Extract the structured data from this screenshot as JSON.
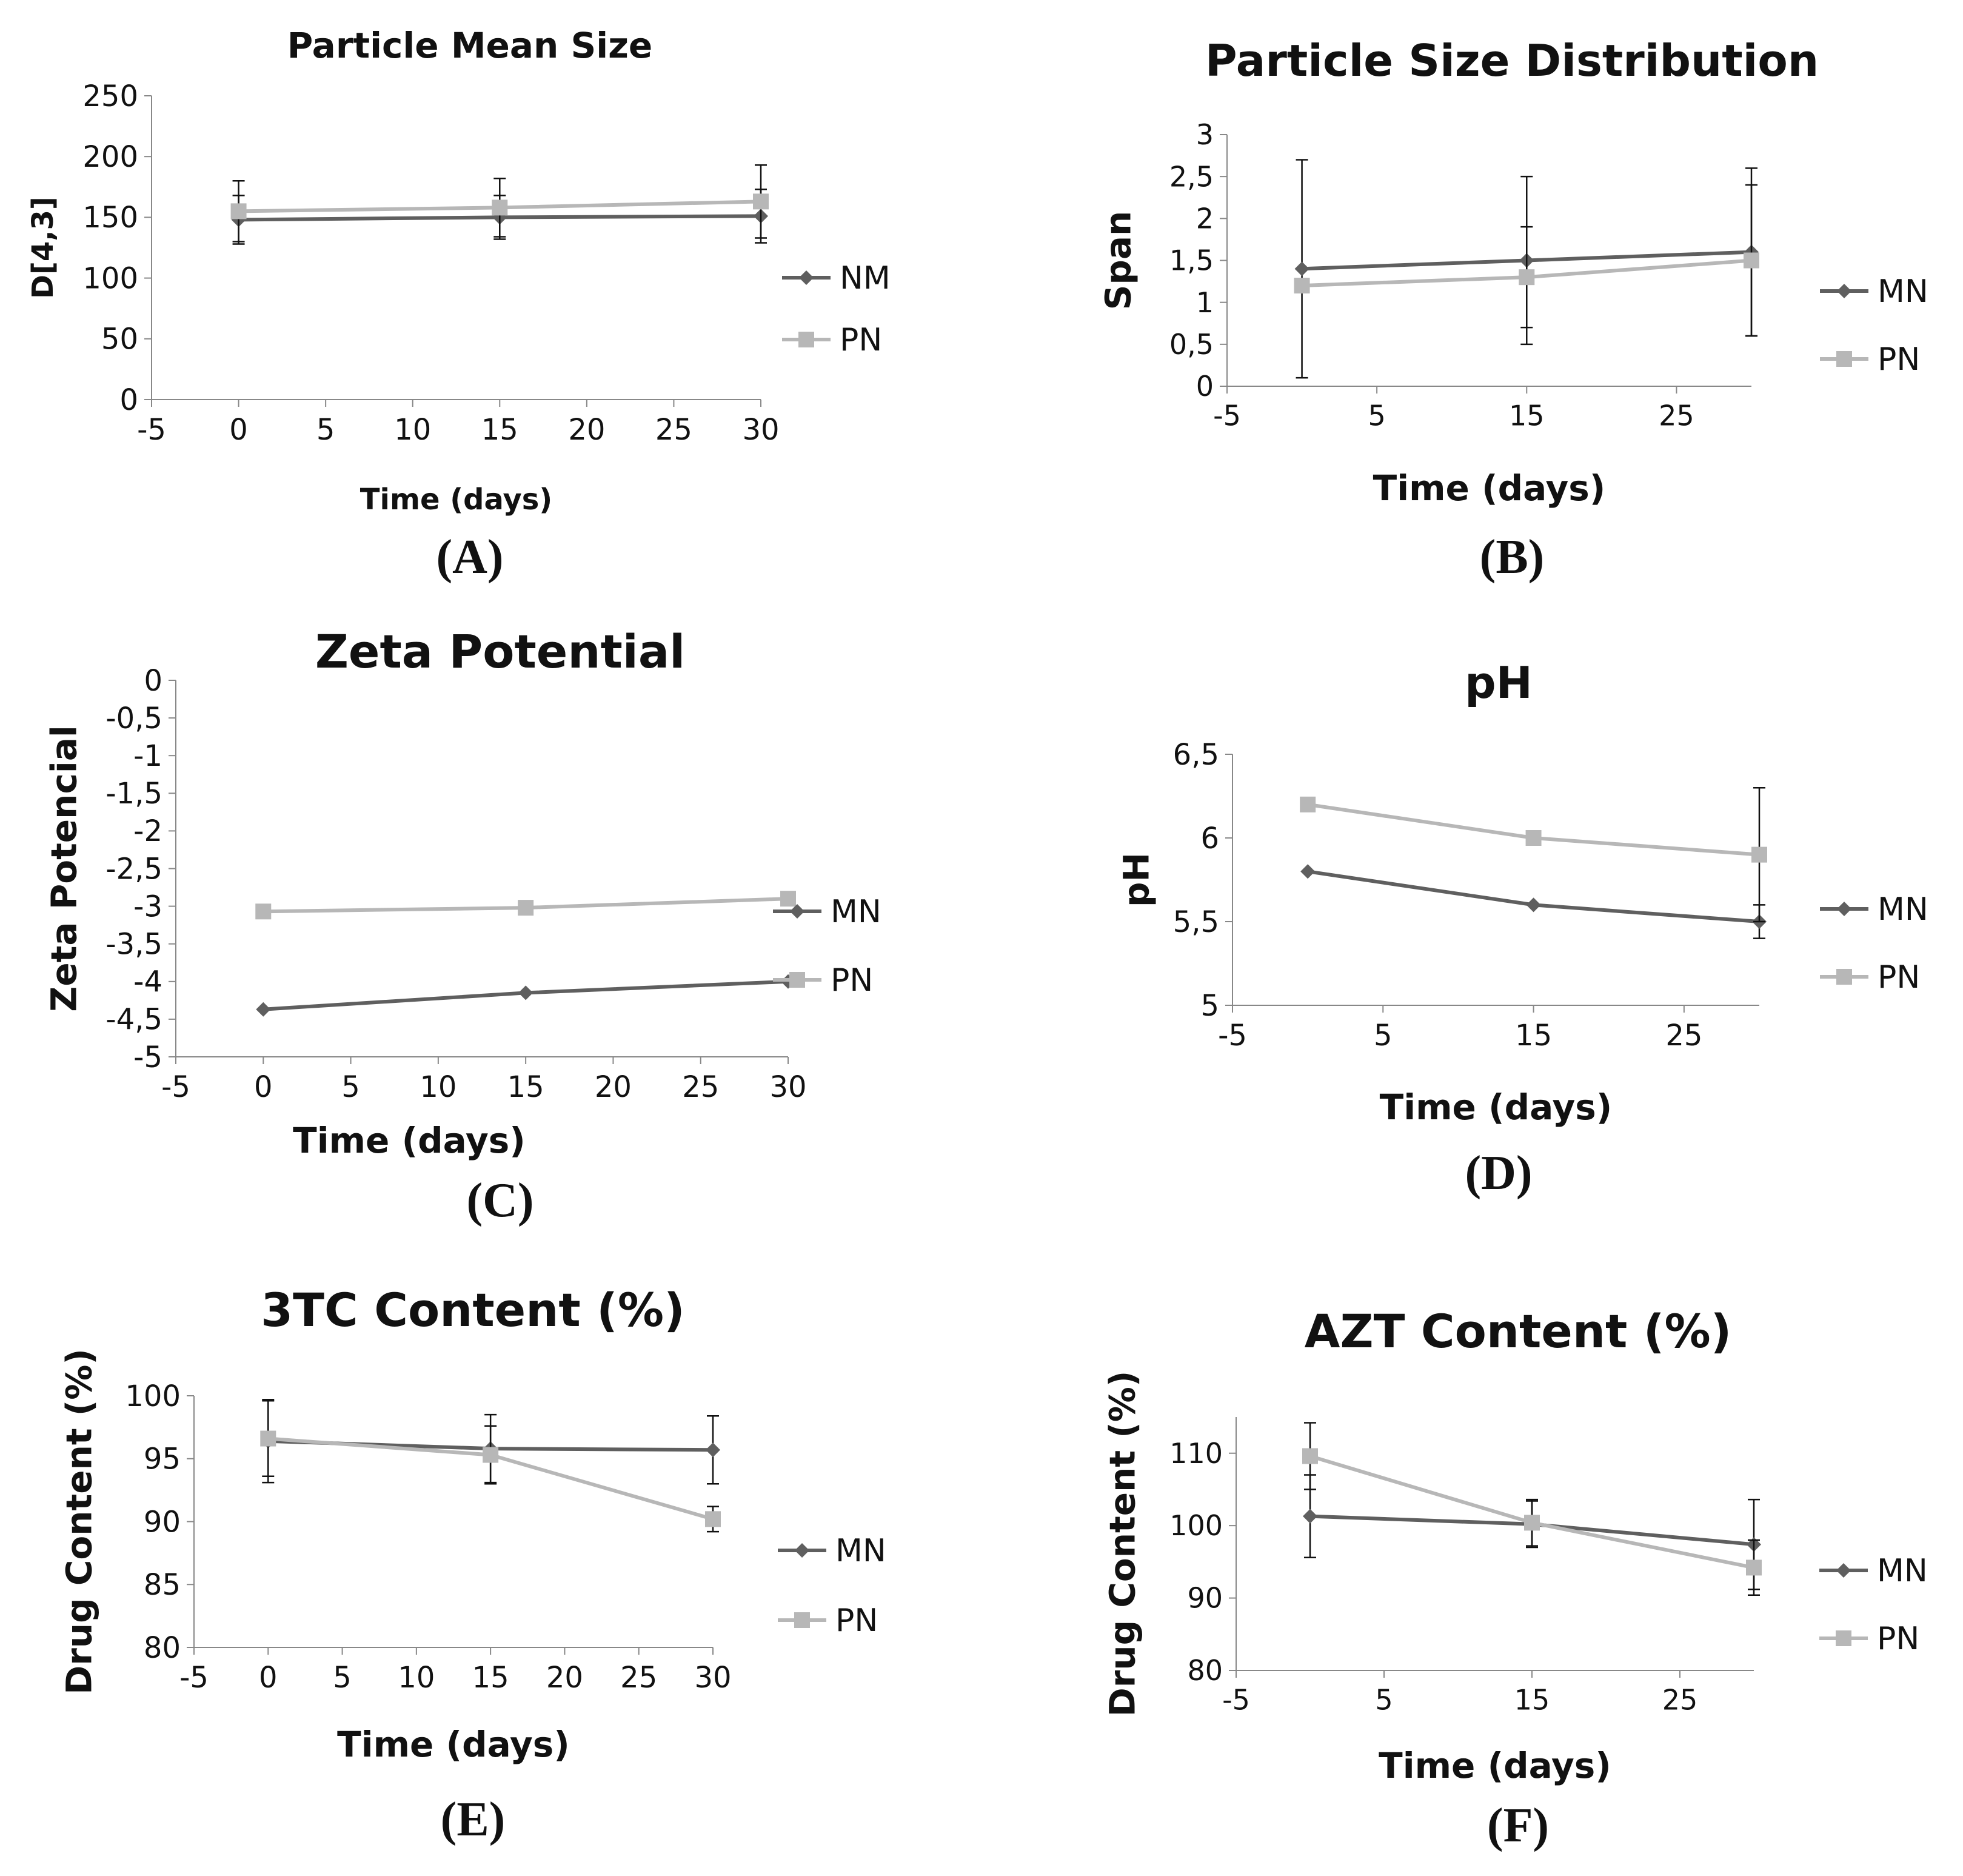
{
  "figure": {
    "panels": [
      "(A)",
      "(B)",
      "(C)",
      "(D)",
      "(E)",
      "(F)"
    ]
  },
  "colors": {
    "MN": "#5f5f5f",
    "PN": "#b7b7b7"
  },
  "chart_data": [
    {
      "type": "line",
      "panel": "(A)",
      "title": "Particle Mean Size",
      "xlabel": "Time (days)",
      "ylabel": "D[4,3]",
      "xlim": [
        -5,
        30
      ],
      "xticks": [
        -5,
        0,
        5,
        10,
        15,
        20,
        25,
        30
      ],
      "xtick_labels": [
        "-5",
        "0",
        "5",
        "10",
        "15",
        "20",
        "25",
        "30"
      ],
      "ylim": [
        0,
        250
      ],
      "yticks": [
        0,
        50,
        100,
        150,
        200,
        250
      ],
      "ytick_labels": [
        "0",
        "50",
        "100",
        "150",
        "200",
        "250"
      ],
      "legend": "right",
      "series": [
        {
          "name": "NM",
          "marker": "diamond",
          "x": [
            0,
            15,
            30
          ],
          "values": [
            148,
            150,
            151
          ],
          "err": [
            20,
            18,
            22
          ]
        },
        {
          "name": "PN",
          "marker": "square",
          "x": [
            0,
            15,
            30
          ],
          "values": [
            155,
            158,
            163
          ],
          "err": [
            25,
            24,
            30
          ]
        }
      ]
    },
    {
      "type": "line",
      "panel": "(B)",
      "title": "Particle Size Distribution",
      "xlabel": "Time (days)",
      "ylabel": "Span",
      "xlim": [
        -5,
        30
      ],
      "xticks": [
        -5,
        5,
        15,
        25
      ],
      "xtick_labels": [
        "-5",
        "5",
        "15",
        "25"
      ],
      "ylim": [
        0,
        3
      ],
      "yticks": [
        0,
        0.5,
        1,
        1.5,
        2,
        2.5,
        3
      ],
      "ytick_labels": [
        "0",
        "0,5",
        "1",
        "1,5",
        "2",
        "2,5",
        "3"
      ],
      "legend": "right",
      "series": [
        {
          "name": "MN",
          "marker": "diamond",
          "x": [
            0,
            15,
            30
          ],
          "values": [
            1.4,
            1.5,
            1.6
          ],
          "err": [
            1.3,
            1.0,
            1.0
          ]
        },
        {
          "name": "PN",
          "marker": "square",
          "x": [
            0,
            15,
            30
          ],
          "values": [
            1.2,
            1.3,
            1.5
          ],
          "err": [
            0,
            0.6,
            0.9
          ]
        }
      ]
    },
    {
      "type": "line",
      "panel": "(C)",
      "title": "Zeta Potential",
      "xlabel": "Time (days)",
      "ylabel": "Zeta Potencial",
      "xlim": [
        -5,
        30
      ],
      "xticks": [
        -5,
        0,
        5,
        10,
        15,
        20,
        25,
        30
      ],
      "xtick_labels": [
        "-5",
        "0",
        "5",
        "10",
        "15",
        "20",
        "25",
        "30"
      ],
      "ylim": [
        -5,
        0
      ],
      "yticks": [
        0,
        -0.5,
        -1,
        -1.5,
        -2,
        -2.5,
        -3,
        -3.5,
        -4,
        -4.5,
        -5
      ],
      "ytick_labels": [
        "0",
        "-0,5",
        "-1",
        "-1,5",
        "-2",
        "-2,5",
        "-3",
        "-3,5",
        "-4",
        "-4,5",
        "-5"
      ],
      "legend": "right",
      "series": [
        {
          "name": "MN",
          "marker": "diamond",
          "x": [
            0,
            15,
            30
          ],
          "values": [
            -4.37,
            -4.15,
            -4.0
          ],
          "err": [
            0,
            0,
            0
          ]
        },
        {
          "name": "PN",
          "marker": "square",
          "x": [
            0,
            15,
            30
          ],
          "values": [
            -3.07,
            -3.02,
            -2.9
          ],
          "err": [
            0,
            0,
            0
          ]
        }
      ]
    },
    {
      "type": "line",
      "panel": "(D)",
      "title": "pH",
      "xlabel": "Time (days)",
      "ylabel": "pH",
      "xlim": [
        -5,
        30
      ],
      "xticks": [
        -5,
        5,
        15,
        25
      ],
      "xtick_labels": [
        "-5",
        "5",
        "15",
        "25"
      ],
      "ylim": [
        5,
        6.5
      ],
      "yticks": [
        5,
        5.5,
        6,
        6.5
      ],
      "ytick_labels": [
        "5",
        "5,5",
        "6",
        "6,5"
      ],
      "legend": "right",
      "series": [
        {
          "name": "MN",
          "marker": "diamond",
          "x": [
            0,
            15,
            30
          ],
          "values": [
            5.8,
            5.6,
            5.5
          ],
          "err": [
            0,
            0,
            0.1
          ]
        },
        {
          "name": "PN",
          "marker": "square",
          "x": [
            0,
            15,
            30
          ],
          "values": [
            6.2,
            6.0,
            5.9
          ],
          "err": [
            0,
            0,
            0.4
          ]
        }
      ]
    },
    {
      "type": "line",
      "panel": "(E)",
      "title": "3TC Content (%)",
      "xlabel": "Time (days)",
      "ylabel": "Drug Content (%)",
      "xlim": [
        -5,
        30
      ],
      "xticks": [
        -5,
        0,
        5,
        10,
        15,
        20,
        25,
        30
      ],
      "xtick_labels": [
        "-5",
        "0",
        "5",
        "10",
        "15",
        "20",
        "25",
        "30"
      ],
      "ylim": [
        80,
        100
      ],
      "yticks": [
        80,
        85,
        90,
        95,
        100
      ],
      "ytick_labels": [
        "80",
        "85",
        "90",
        "95",
        "100"
      ],
      "legend": "right",
      "series": [
        {
          "name": "MN",
          "marker": "diamond",
          "x": [
            0,
            15,
            30
          ],
          "values": [
            96.4,
            95.8,
            95.7
          ],
          "err": [
            3.3,
            2.7,
            2.7
          ]
        },
        {
          "name": "PN",
          "marker": "square",
          "x": [
            0,
            15,
            30
          ],
          "values": [
            96.6,
            95.3,
            90.2
          ],
          "err": [
            3.0,
            2.3,
            1.0
          ]
        }
      ]
    },
    {
      "type": "line",
      "panel": "(F)",
      "title": "AZT Content (%)",
      "xlabel": "Time (days)",
      "ylabel": "Drug Content (%)",
      "xlim": [
        -5,
        30
      ],
      "xticks": [
        -5,
        5,
        15,
        25
      ],
      "xtick_labels": [
        "-5",
        "5",
        "15",
        "25"
      ],
      "ylim": [
        80,
        115
      ],
      "yticks": [
        80,
        90,
        100,
        110
      ],
      "ytick_labels": [
        "80",
        "90",
        "100",
        "110"
      ],
      "legend": "right",
      "series": [
        {
          "name": "MN",
          "marker": "diamond",
          "x": [
            0,
            15,
            30
          ],
          "values": [
            101.3,
            100.2,
            97.4
          ],
          "err": [
            5.7,
            3.2,
            6.2
          ]
        },
        {
          "name": "PN",
          "marker": "square",
          "x": [
            0,
            15,
            30
          ],
          "values": [
            109.6,
            100.4,
            94.2
          ],
          "err": [
            4.6,
            3.2,
            3.8
          ]
        }
      ]
    }
  ]
}
